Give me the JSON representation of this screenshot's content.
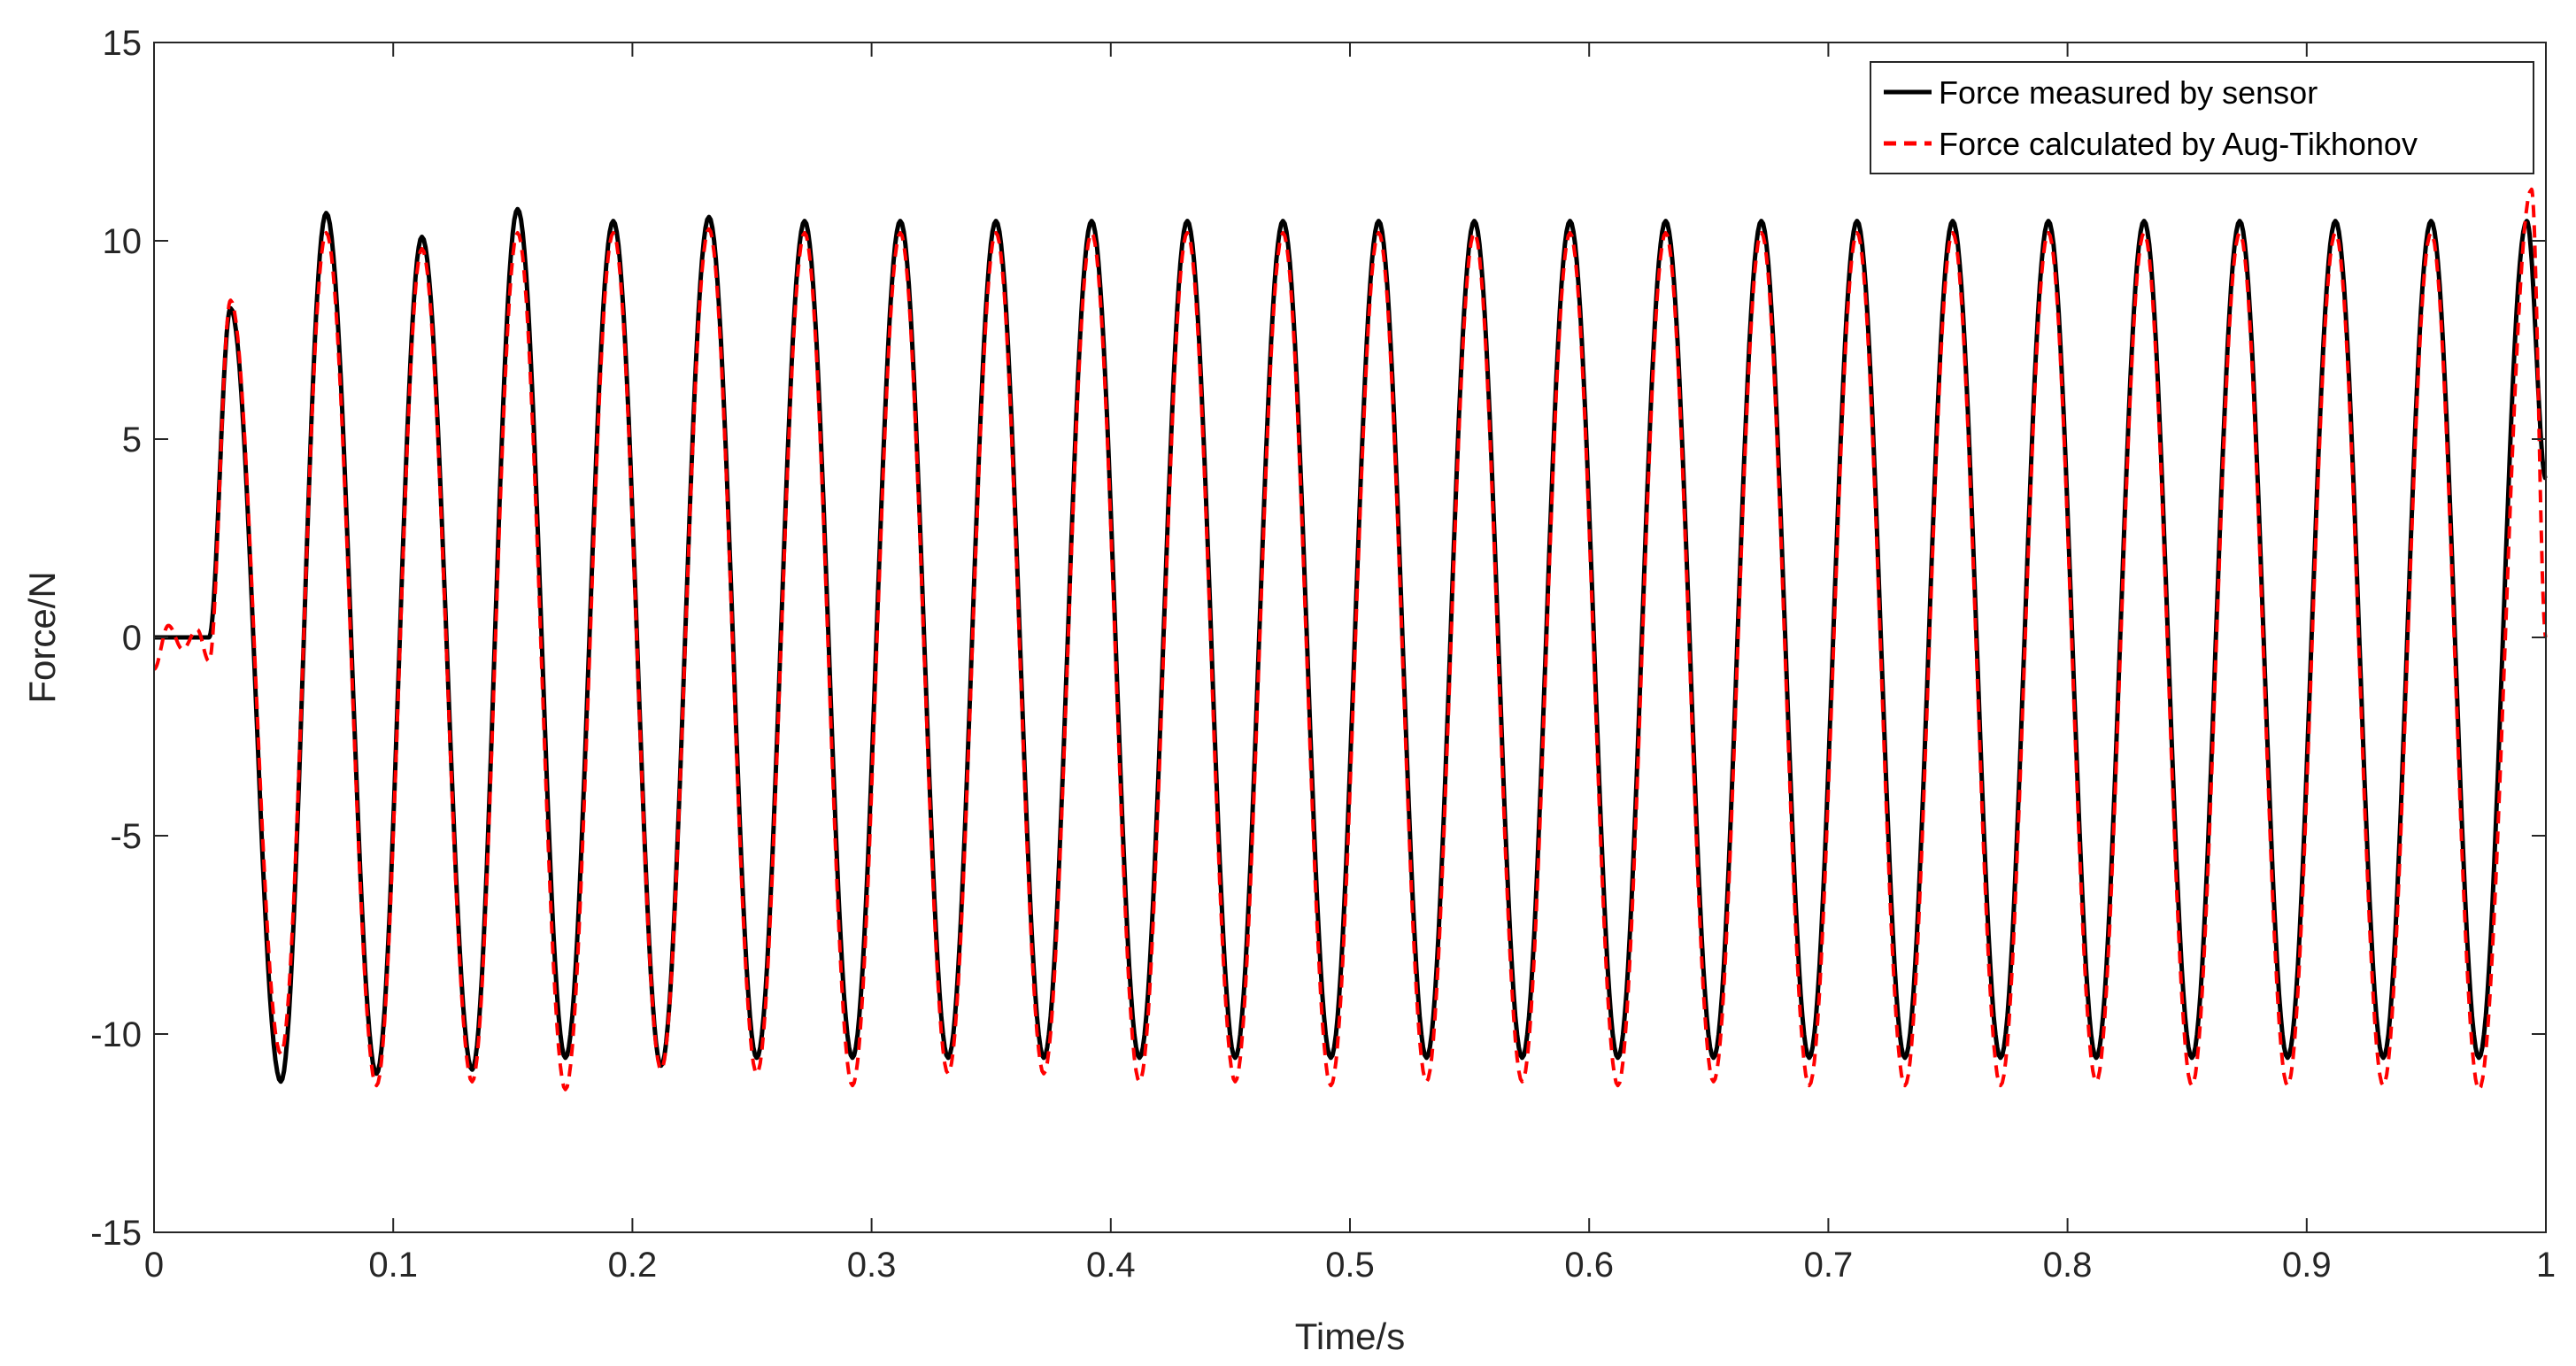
{
  "chart_data": {
    "type": "line",
    "title": "",
    "xlabel": "Time/s",
    "ylabel": "Force/N",
    "xlim": [
      0,
      1
    ],
    "ylim": [
      -15,
      15
    ],
    "xticks": [
      0,
      0.1,
      0.2,
      0.3,
      0.4,
      0.5,
      0.6,
      0.7,
      0.8,
      0.9,
      1
    ],
    "xtick_labels": [
      "0",
      "0.1",
      "0.2",
      "0.3",
      "0.4",
      "0.5",
      "0.6",
      "0.7",
      "0.8",
      "0.9",
      "1"
    ],
    "yticks": [
      15,
      10,
      5,
      0,
      -5,
      -10,
      -15
    ],
    "ytick_labels": [
      "15",
      "10",
      "5",
      "0",
      "-5",
      "-10",
      "-15"
    ],
    "grid": false,
    "legend_position": "top-right",
    "series": [
      {
        "name": "Force measured by sensor",
        "color": "#000000",
        "style": "solid",
        "x": [
          0,
          0.023,
          0.032,
          0.053,
          0.072,
          0.093,
          0.112,
          0.133,
          0.152,
          0.172,
          0.192,
          0.212,
          0.232,
          0.252,
          0.272,
          0.292,
          0.312,
          0.332,
          0.352,
          0.372,
          0.392,
          0.412,
          0.432,
          0.452,
          0.472,
          0.492,
          0.512,
          0.532,
          0.552,
          0.572,
          0.592,
          0.612,
          0.632,
          0.652,
          0.672,
          0.692,
          0.712,
          0.732,
          0.752,
          0.772,
          0.792,
          0.812,
          0.832,
          0.852,
          0.872,
          0.892,
          0.912,
          0.932,
          0.952,
          0.972,
          0.992,
          1.0
        ],
        "y": [
          0,
          0,
          8.3,
          -11.2,
          10.7,
          -11.0,
          10.1,
          -10.9,
          10.8,
          -10.6,
          10.5,
          -10.8,
          10.6,
          -10.6,
          10.5,
          -10.6,
          10.5,
          -10.6,
          10.5,
          -10.6,
          10.5,
          -10.6,
          10.5,
          -10.6,
          10.5,
          -10.6,
          10.5,
          -10.6,
          10.5,
          -10.6,
          10.5,
          -10.6,
          10.5,
          -10.6,
          10.5,
          -10.6,
          10.5,
          -10.6,
          10.5,
          -10.6,
          10.5,
          -10.6,
          10.5,
          -10.6,
          10.5,
          -10.6,
          10.5,
          -10.6,
          10.5,
          -10.6,
          10.5,
          4.0
        ]
      },
      {
        "name": "Force calculated by Aug-Tikhonov",
        "color": "#ff0000",
        "style": "dashed",
        "x": [
          0,
          0.006,
          0.012,
          0.018,
          0.023,
          0.032,
          0.053,
          0.072,
          0.093,
          0.112,
          0.133,
          0.152,
          0.172,
          0.192,
          0.212,
          0.232,
          0.252,
          0.272,
          0.292,
          0.312,
          0.332,
          0.352,
          0.372,
          0.392,
          0.412,
          0.432,
          0.452,
          0.472,
          0.492,
          0.512,
          0.532,
          0.552,
          0.572,
          0.592,
          0.612,
          0.632,
          0.652,
          0.672,
          0.692,
          0.712,
          0.732,
          0.752,
          0.772,
          0.792,
          0.812,
          0.832,
          0.852,
          0.872,
          0.892,
          0.912,
          0.932,
          0.952,
          0.972,
          0.994,
          1.0
        ],
        "y": [
          -0.8,
          0.3,
          -0.3,
          0.2,
          -0.6,
          8.5,
          -10.5,
          10.2,
          -11.3,
          9.8,
          -11.2,
          10.2,
          -11.4,
          10.2,
          -10.9,
          10.3,
          -11.0,
          10.2,
          -11.3,
          10.2,
          -11.0,
          10.2,
          -11.0,
          10.2,
          -11.2,
          10.2,
          -11.2,
          10.2,
          -11.3,
          10.2,
          -11.2,
          10.2,
          -11.2,
          10.2,
          -11.3,
          10.2,
          -11.2,
          10.2,
          -11.3,
          10.2,
          -11.3,
          10.2,
          -11.3,
          10.2,
          -11.2,
          10.2,
          -11.3,
          10.2,
          -11.3,
          10.2,
          -11.3,
          10.2,
          -11.4,
          11.3,
          0
        ]
      }
    ]
  }
}
